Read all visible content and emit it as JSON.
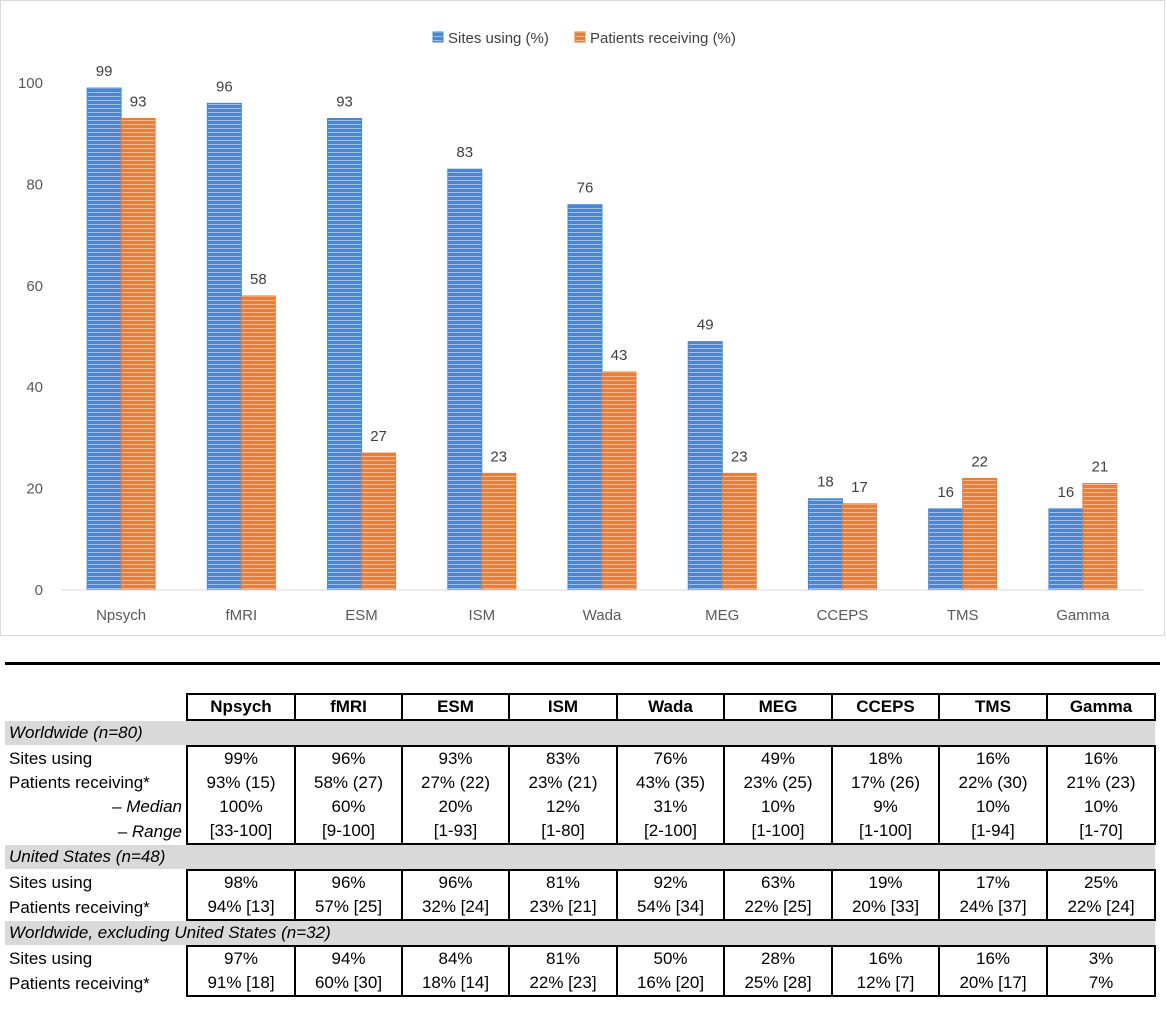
{
  "chart_data": {
    "type": "bar",
    "categories": [
      "Npsych",
      "fMRI",
      "ESM",
      "ISM",
      "Wada",
      "MEG",
      "CCEPS",
      "TMS",
      "Gamma"
    ],
    "series": [
      {
        "name": "Sites using (%)",
        "color": "#4a86d6",
        "values": [
          99,
          96,
          93,
          83,
          76,
          49,
          18,
          16,
          16
        ]
      },
      {
        "name": "Patients receiving (%)",
        "color": "#ed7d31",
        "values": [
          93,
          58,
          27,
          23,
          43,
          23,
          17,
          22,
          21
        ]
      }
    ],
    "yticks": [
      0,
      20,
      40,
      60,
      80,
      100
    ],
    "ylim": [
      0,
      100
    ],
    "legend_position": "top-center",
    "grid": false
  },
  "table": {
    "columns": [
      "Npsych",
      "fMRI",
      "ESM",
      "ISM",
      "Wada",
      "MEG",
      "CCEPS",
      "TMS",
      "Gamma"
    ],
    "sections": [
      {
        "title": "Worldwide (n=80)",
        "rows": [
          {
            "label": "Sites using",
            "sub": false,
            "values": [
              "99%",
              "96%",
              "93%",
              "83%",
              "76%",
              "49%",
              "18%",
              "16%",
              "16%"
            ]
          },
          {
            "label": "Patients receiving*",
            "sub": false,
            "values": [
              "93% (15)",
              "58% (27)",
              "27% (22)",
              "23% (21)",
              "43% (35)",
              "23% (25)",
              "17% (26)",
              "22% (30)",
              "21% (23)"
            ]
          },
          {
            "label": "– Median",
            "sub": true,
            "values": [
              "100%",
              "60%",
              "20%",
              "12%",
              "31%",
              "10%",
              "9%",
              "10%",
              "10%"
            ]
          },
          {
            "label": "– Range",
            "sub": true,
            "values": [
              "[33-100]",
              "[9-100]",
              "[1-93]",
              "[1-80]",
              "[2-100]",
              "[1-100]",
              "[1-100]",
              "[1-94]",
              "[1-70]"
            ]
          }
        ]
      },
      {
        "title": "United States (n=48)",
        "rows": [
          {
            "label": "Sites using",
            "sub": false,
            "values": [
              "98%",
              "96%",
              "96%",
              "81%",
              "92%",
              "63%",
              "19%",
              "17%",
              "25%"
            ]
          },
          {
            "label": "Patients receiving*",
            "sub": false,
            "values": [
              "94% [13]",
              "57% [25]",
              "32% [24]",
              "23% [21]",
              "54% [34]",
              "22% [25]",
              "20% [33]",
              "24% [37]",
              "22% [24]"
            ]
          }
        ]
      },
      {
        "title": "Worldwide, excluding United States (n=32)",
        "rows": [
          {
            "label": "Sites using",
            "sub": false,
            "values": [
              "97%",
              "94%",
              "84%",
              "81%",
              "50%",
              "28%",
              "16%",
              "16%",
              "3%"
            ]
          },
          {
            "label": "Patients receiving*",
            "sub": false,
            "values": [
              "91% [18]",
              "60% [30]",
              "18% [14]",
              "22% [23]",
              "16% [20]",
              "25% [28]",
              "12% [7]",
              "20% [17]",
              "7%"
            ]
          }
        ]
      }
    ]
  }
}
